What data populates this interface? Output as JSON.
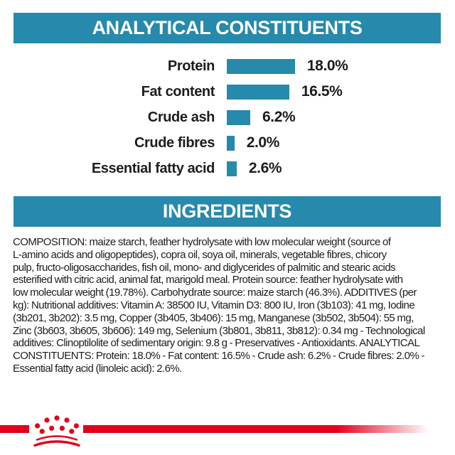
{
  "colors": {
    "teal": "#2789ab",
    "red": "#e2001a",
    "text": "#1d1d1b"
  },
  "sections": {
    "analytical": {
      "title": "ANALYTICAL CONSTITUENTS"
    },
    "ingredients": {
      "title": "INGREDIENTS"
    }
  },
  "chart_data": {
    "type": "bar",
    "orientation": "horizontal",
    "title": "ANALYTICAL CONSTITUENTS",
    "categories": [
      "Protein",
      "Fat content",
      "Crude ash",
      "Crude fibres",
      "Essential fatty acid"
    ],
    "values": [
      18.0,
      16.5,
      6.2,
      2.0,
      2.6
    ],
    "value_labels": [
      "18.0%",
      "16.5%",
      "6.2%",
      "2.0%",
      "2.6%"
    ],
    "unit": "%",
    "xlim": [
      0,
      20
    ],
    "grid": false,
    "legend": false,
    "bar_color": "#2789ab"
  },
  "ingredients_text": {
    "lines": [
      "COMPOSITION: maize starch, feather hydrolysate with low molecular weight (source of",
      "L-amino acids and oligopeptides), copra oil, soya oil, minerals, vegetable fibres, chicory",
      "pulp, fructo-oligosaccharides, fish oil, mono- and diglycerides of palmitic and stearic acids",
      "esterified with citric acid, animal fat, marigold meal. Protein source: feather hydrolysate with",
      "low molecular weight (19.78%). Carbohydrate source: maize starch (46.3%). ADDITIVES (per",
      "kg): Nutritional additives: Vitamin A: 38500 IU, Vitamin D3: 800 IU, Iron (3b103): 41 mg, Iodine",
      "(3b201, 3b202): 3.5 mg, Copper (3b405, 3b406): 15 mg, Manganese (3b502, 3b504): 55 mg,",
      "Zinc (3b603, 3b605, 3b606): 149 mg, Selenium (3b801, 3b811, 3b812): 0.34 mg - Technological",
      "additives: Clinoptilolite of sedimentary origin: 9.8 g - Preservatives - Antioxidants. ANALYTICAL",
      "CONSTITUENTS: Protein: 18.0% - Fat content: 16.5% - Crude ash: 6.2% - Crude fibres: 2.0% -",
      "Essential fatty acid (linoleic acid): 2.6%."
    ]
  },
  "footer": {
    "logo": "royal-canin-crown-logo"
  }
}
